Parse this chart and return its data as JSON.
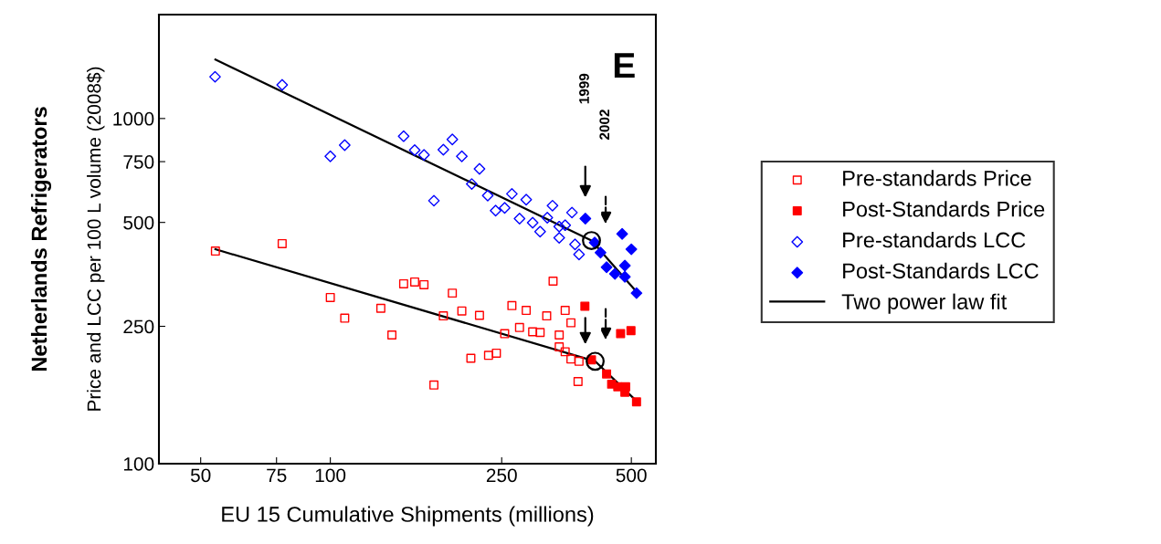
{
  "chart_data": {
    "type": "scatter",
    "title": "Netherlands Refrigerators",
    "xlabel": "EU 15 Cumulative Shipments (millions)",
    "ylabel": "Price and LCC per 100 L volume (2008$)",
    "log": "xy",
    "xlim": [
      40,
      570
    ],
    "ylim": [
      100,
      2000
    ],
    "xticks": [
      50,
      75,
      100,
      250,
      500
    ],
    "yticks": [
      100,
      250,
      500,
      750,
      1000
    ],
    "grid": false,
    "legend": "right",
    "series": [
      {
        "name": "Pre-standards Price",
        "color": "#ff0000",
        "marker": "square",
        "x": [
          54.1,
          77.3,
          100,
          108,
          131,
          139,
          148,
          157,
          165,
          174,
          183,
          192,
          202,
          212,
          222,
          233,
          243,
          254,
          264,
          275,
          285,
          295,
          307,
          318,
          329,
          340,
          351,
          362,
          340,
          351,
          362,
          376,
          378
        ],
        "values": [
          413,
          434,
          303,
          264,
          282,
          236,
          332,
          336,
          330,
          169,
          268,
          312,
          277,
          202,
          269,
          206,
          209,
          238,
          287,
          248,
          278,
          241,
          240,
          268,
          338,
          236,
          278,
          256,
          218,
          211,
          201,
          173,
          198
        ]
      },
      {
        "name": "Post-Standards Price",
        "color": "#ff0000",
        "marker": "square",
        "x": [
          390,
          404,
          438,
          450,
          465,
          472,
          483,
          485,
          499,
          514
        ],
        "values": [
          286,
          200,
          182,
          170,
          167,
          238,
          161,
          167,
          243,
          151
        ]
      },
      {
        "name": "Pre-standards LCC",
        "color": "#0000ff",
        "marker": "diamond",
        "x": [
          54,
          77.3,
          100,
          108,
          148,
          157,
          165,
          174,
          183,
          192,
          202,
          213,
          222,
          232,
          242,
          254,
          264,
          275,
          285,
          295,
          307,
          319,
          328,
          340,
          351,
          364,
          340,
          370,
          378
        ],
        "values": [
          1321,
          1251,
          777,
          837,
          889,
          810,
          784,
          578,
          812,
          870,
          777,
          646,
          715,
          598,
          541,
          551,
          605,
          513,
          582,
          499,
          470,
          516,
          559,
          486,
          491,
          534,
          451,
          432,
          404
        ]
      },
      {
        "name": "Post-Standards LCC",
        "color": "#0000ff",
        "marker": "diamond",
        "x": [
          391,
          411,
          424,
          438,
          458,
          476,
          483,
          483,
          500,
          514
        ],
        "values": [
          513,
          437,
          409,
          371,
          355,
          463,
          375,
          348,
          418,
          312
        ]
      },
      {
        "name": "Two power law fit",
        "type": "line",
        "color": "#000000",
        "x": [
          54.1,
          404,
          514
        ],
        "values": [
          1482,
          443,
          315
        ]
      },
      {
        "type": "line",
        "color": "#000000",
        "x": [
          54.1,
          412,
          508
        ],
        "values": [
          418,
          198,
          154
        ]
      },
      {
        "color": "#000000",
        "marker": "circle",
        "x": [
          404,
          412
        ],
        "values": [
          443,
          198
        ]
      }
    ],
    "annotations": [
      "1999",
      "2002",
      "E"
    ]
  }
}
